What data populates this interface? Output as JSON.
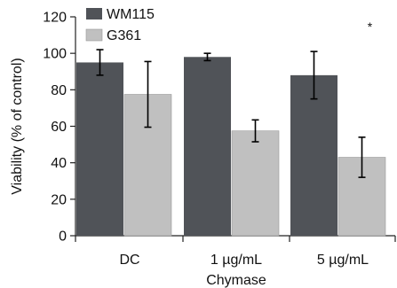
{
  "chart_data": {
    "type": "bar",
    "categories": [
      "DC",
      "1 µg/mL",
      "5 µg/mL"
    ],
    "series": [
      {
        "name": "WM115",
        "color": "#505358",
        "values": [
          95,
          98,
          88
        ],
        "error": [
          7,
          2,
          13
        ]
      },
      {
        "name": "G361",
        "color": "#c0c0c0",
        "values": [
          77.5,
          57.5,
          43
        ],
        "error": [
          18,
          6,
          11
        ]
      }
    ],
    "xlabel": "Chymase",
    "ylabel": "Viability (% of control)",
    "ylim": [
      0,
      120
    ],
    "yticks": [
      0,
      20,
      40,
      60,
      80,
      100,
      120
    ],
    "grid": false,
    "legend_position": "top-left",
    "annotations": [
      {
        "text": "*",
        "category_index": 2,
        "series_index": 1,
        "y": 117
      }
    ]
  }
}
